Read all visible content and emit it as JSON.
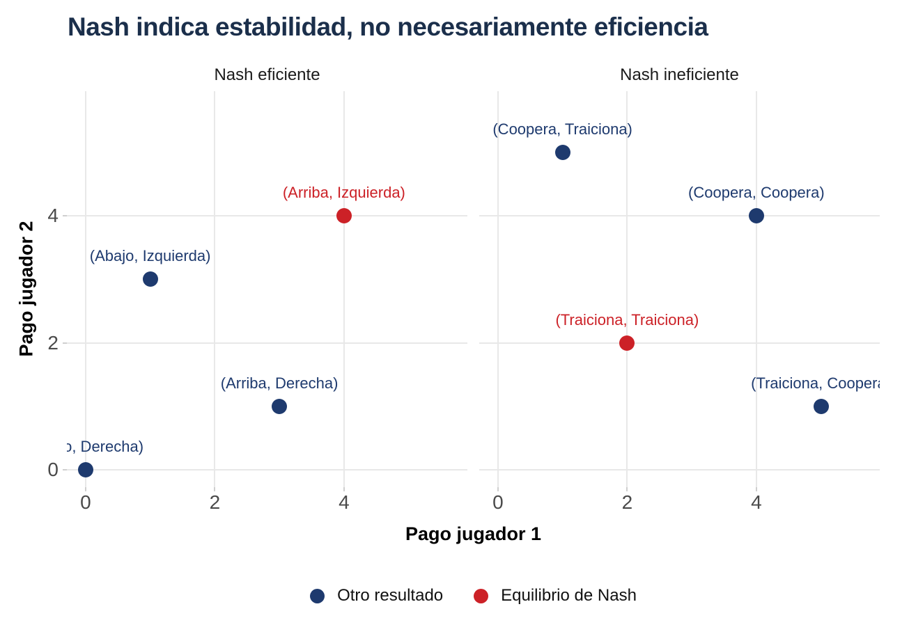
{
  "title": "Nash indica estabilidad, no necesariamente eficiencia",
  "colors": {
    "other_outcome": "#1e3a6e",
    "nash_equilibrium": "#cc2127",
    "title_text": "#1b2f4b",
    "axis_text": "#4a4a4a",
    "strip_text": "#1a1a1a",
    "legend_text": "#111111",
    "gridline": "#e8e8e8",
    "tick_mark": "#cfcfcf",
    "background": "#ffffff"
  },
  "legend": {
    "items": [
      {
        "label": "Otro resultado",
        "series": "other_outcome"
      },
      {
        "label": "Equilibrio de Nash",
        "series": "nash_equilibrium"
      }
    ]
  },
  "chart_data": {
    "type": "scatter",
    "title": "Nash indica estabilidad, no necesariamente eficiencia",
    "xlabel": "Pago jugador 1",
    "ylabel": "Pago jugador 2",
    "x_ticks": [
      0,
      2,
      4
    ],
    "y_ticks": [
      0,
      2,
      4
    ],
    "x_range": [
      -0.29,
      5.91
    ],
    "y_range": [
      -0.27,
      5.96
    ],
    "grid": "major-only",
    "legend_position": "bottom",
    "series_legend": [
      "Otro resultado",
      "Equilibrio de Nash"
    ],
    "facets": [
      {
        "title": "Nash eficiente",
        "points": [
          {
            "x": 4,
            "y": 4,
            "label": "(Arriba, Izquierda)",
            "series": "nash_equilibrium",
            "series_label": "Equilibrio de Nash"
          },
          {
            "x": 1,
            "y": 3,
            "label": "(Abajo, Izquierda)",
            "series": "other_outcome",
            "series_label": "Otro resultado"
          },
          {
            "x": 3,
            "y": 1,
            "label": "(Arriba, Derecha)",
            "series": "other_outcome",
            "series_label": "Otro resultado"
          },
          {
            "x": 0,
            "y": 0,
            "label": "(Abajo, Derecha)",
            "series": "other_outcome",
            "series_label": "Otro resultado"
          }
        ]
      },
      {
        "title": "Nash ineficiente",
        "points": [
          {
            "x": 1,
            "y": 5,
            "label": "(Coopera, Traiciona)",
            "series": "other_outcome",
            "series_label": "Otro resultado"
          },
          {
            "x": 4,
            "y": 4,
            "label": "(Coopera, Coopera)",
            "series": "other_outcome",
            "series_label": "Otro resultado"
          },
          {
            "x": 2,
            "y": 2,
            "label": "(Traiciona, Traiciona)",
            "series": "nash_equilibrium",
            "series_label": "Equilibrio de Nash"
          },
          {
            "x": 5,
            "y": 1,
            "label": "(Traiciona, Coopera)",
            "series": "other_outcome",
            "series_label": "Otro resultado"
          }
        ]
      }
    ]
  }
}
